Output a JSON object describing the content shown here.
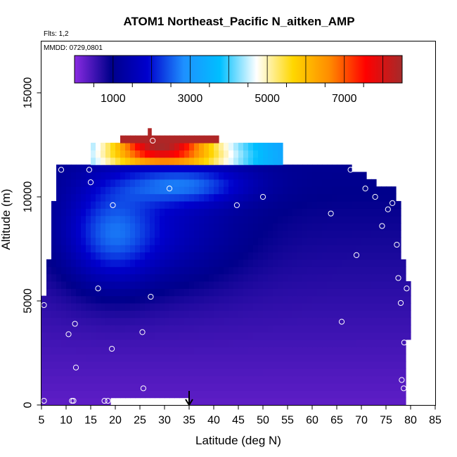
{
  "chart_data": {
    "type": "heatmap",
    "title": "ATOM1 Northeast_Pacific N_aitken_AMP",
    "flights_label": "Flts: 1,2",
    "date_label": "MMDD: 0729,0801",
    "xlabel": "Latitude (deg N)",
    "ylabel": "Altitude (m)",
    "xlim": [
      5,
      85
    ],
    "ylim": [
      0,
      17500
    ],
    "x_ticks": [
      5,
      10,
      15,
      20,
      25,
      30,
      35,
      40,
      45,
      50,
      55,
      60,
      65,
      70,
      75,
      80,
      85
    ],
    "x_tick_labels": [
      "5",
      "10",
      "15",
      "20",
      "25",
      "30",
      "35",
      "40",
      "45",
      "50",
      "55",
      "60",
      "65",
      "70",
      "75",
      "80",
      "85"
    ],
    "y_ticks": [
      0,
      5000,
      10000,
      15000
    ],
    "y_tick_labels": [
      "0",
      "5000",
      "10000",
      "15000"
    ],
    "colorbar": {
      "range": [
        0,
        8500
      ],
      "ticks": [
        1000,
        3000,
        5000,
        7000
      ],
      "tick_labels": [
        "1000",
        "3000",
        "5000",
        "7000"
      ],
      "colors": [
        "#8a2be2",
        "#00008b",
        "#0000cd",
        "#1e90ff",
        "#00bfff",
        "#ffffff",
        "#ffd700",
        "#ff8c00",
        "#ff0000",
        "#a52a2a"
      ]
    },
    "marker_latitude": 35,
    "samples": [
      {
        "lat": 5.5,
        "alt": 200
      },
      {
        "lat": 5.5,
        "alt": 4800
      },
      {
        "lat": 9,
        "alt": 11300
      },
      {
        "lat": 10.5,
        "alt": 3400
      },
      {
        "lat": 11.2,
        "alt": 200
      },
      {
        "lat": 11.5,
        "alt": 200
      },
      {
        "lat": 11.8,
        "alt": 3900
      },
      {
        "lat": 12,
        "alt": 1800
      },
      {
        "lat": 14.7,
        "alt": 11300
      },
      {
        "lat": 15,
        "alt": 10700
      },
      {
        "lat": 16.5,
        "alt": 5600
      },
      {
        "lat": 17.8,
        "alt": 200
      },
      {
        "lat": 18.5,
        "alt": 200
      },
      {
        "lat": 19.3,
        "alt": 2700
      },
      {
        "lat": 19.5,
        "alt": 9600
      },
      {
        "lat": 25.5,
        "alt": 3500
      },
      {
        "lat": 25.7,
        "alt": 800
      },
      {
        "lat": 27.2,
        "alt": 5200
      },
      {
        "lat": 27.6,
        "alt": 12700
      },
      {
        "lat": 31,
        "alt": 10400
      },
      {
        "lat": 44.7,
        "alt": 9600
      },
      {
        "lat": 50,
        "alt": 10000
      },
      {
        "lat": 63.8,
        "alt": 9200
      },
      {
        "lat": 66,
        "alt": 4000
      },
      {
        "lat": 67.8,
        "alt": 11300
      },
      {
        "lat": 69,
        "alt": 7200
      },
      {
        "lat": 70.8,
        "alt": 10400
      },
      {
        "lat": 72.8,
        "alt": 10000
      },
      {
        "lat": 74.2,
        "alt": 8600
      },
      {
        "lat": 75.4,
        "alt": 9400
      },
      {
        "lat": 76.3,
        "alt": 9700
      },
      {
        "lat": 77.2,
        "alt": 7700
      },
      {
        "lat": 77.5,
        "alt": 6100
      },
      {
        "lat": 78,
        "alt": 4900
      },
      {
        "lat": 78.2,
        "alt": 1200
      },
      {
        "lat": 78.6,
        "alt": 800
      },
      {
        "lat": 78.7,
        "alt": 3000
      },
      {
        "lat": 79.2,
        "alt": 5600
      }
    ]
  }
}
